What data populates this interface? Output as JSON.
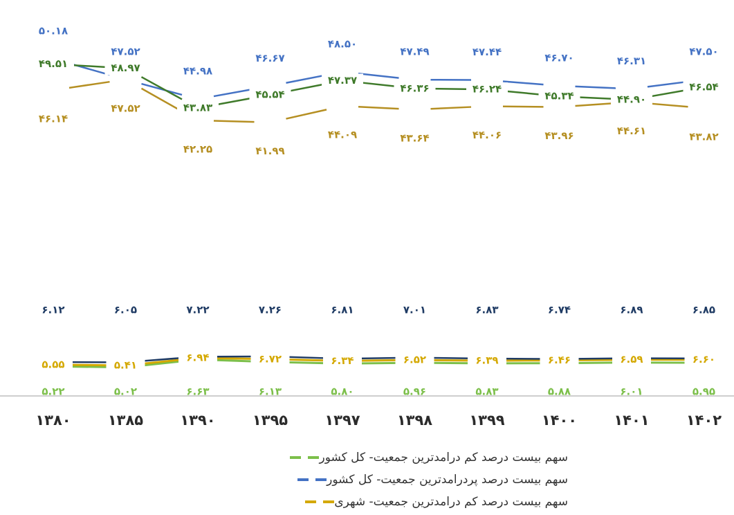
{
  "chart_data": {
    "type": "line",
    "categories": [
      "۱۳۸۰",
      "۱۳۸۵",
      "۱۳۹۰",
      "۱۳۹۵",
      "۱۳۹۷",
      "۱۳۹۸",
      "۱۳۹۹",
      "۱۴۰۰",
      "۱۴۰۱",
      "۱۴۰۲"
    ],
    "colors": {
      "blue": "#4472c4",
      "green": "#3f7a2a",
      "yellow": "#d4a800",
      "olive": "#b58f22",
      "darkblue": "#1f3b64",
      "lightgreen": "#7cbf4a",
      "axis": "#bdbdbd"
    },
    "top_group": {
      "series": [
        {
          "name": "سهم بیست درصد پردرامدترین جمعیت- کل کشور",
          "values": [
            50.18,
            47.52,
            44.98,
            46.67,
            48.5,
            47.49,
            47.44,
            46.7,
            46.31,
            47.5
          ],
          "labels": [
            "۵۰.۱۸",
            "۴۷.۵۲",
            "۴۴.۹۸",
            "۴۶.۶۷",
            "۴۸.۵۰",
            "۴۷.۴۹",
            "۴۷.۴۴",
            "۴۶.۷۰",
            "۴۶.۳۱",
            "۴۷.۵۰"
          ]
        },
        {
          "values": [
            49.51,
            48.97,
            43.83,
            45.54,
            47.37,
            46.36,
            46.24,
            45.34,
            44.9,
            46.54
          ],
          "labels": [
            "۴۹.۵۱",
            "۴۸.۹۷",
            "۴۳.۸۳",
            "۴۵.۵۴",
            "۴۷.۳۷",
            "۴۶.۳۶",
            "۴۶.۲۴",
            "۴۵.۳۴",
            "۴۴.۹۰",
            "۴۶.۵۴"
          ]
        },
        {
          "values": [
            46.14,
            47.52,
            42.25,
            41.99,
            44.09,
            43.64,
            44.06,
            43.96,
            44.61,
            43.82
          ],
          "labels": [
            "۴۶.۱۴",
            "۴۷.۵۲",
            "۴۲.۲۵",
            "۴۱.۹۹",
            "۴۴.۰۹",
            "۴۳.۶۴",
            "۴۴.۰۶",
            "۴۳.۹۶",
            "۴۴.۶۱",
            "۴۳.۸۲"
          ]
        }
      ]
    },
    "bottom_group": {
      "series": [
        {
          "values": [
            6.12,
            6.05,
            7.22,
            7.26,
            6.81,
            7.01,
            6.83,
            6.74,
            6.89,
            6.85
          ],
          "labels": [
            "۶.۱۲",
            "۶.۰۵",
            "۷.۲۲",
            "۷.۲۶",
            "۶.۸۱",
            "۷.۰۱",
            "۶.۸۳",
            "۶.۷۴",
            "۶.۸۹",
            "۶.۸۵"
          ]
        },
        {
          "name": "سهم بیست درصد کم درامدترین جمعیت- شهری",
          "values": [
            5.55,
            5.41,
            6.94,
            6.72,
            6.34,
            6.52,
            6.39,
            6.46,
            6.59,
            6.6
          ],
          "labels": [
            "۵.۵۵",
            "۵.۴۱",
            "۶.۹۴",
            "۶.۷۲",
            "۶.۳۴",
            "۶.۵۲",
            "۶.۳۹",
            "۶.۴۶",
            "۶.۵۹",
            "۶.۶۰"
          ]
        },
        {
          "name": "سهم بیست درصد کم درامدترین جمعیت- کل کشور",
          "values": [
            5.22,
            5.02,
            6.63,
            6.13,
            5.8,
            5.96,
            5.83,
            5.88,
            6.01,
            5.95
          ],
          "labels": [
            "۵.۲۲",
            "۵.۰۲",
            "۶.۶۳",
            "۶.۱۳",
            "۵.۸۰",
            "۵.۹۶",
            "۵.۸۳",
            "۵.۸۸",
            "۶.۰۱",
            "۵.۹۵"
          ]
        }
      ]
    },
    "legend": {
      "placement": "bottom-center",
      "entries": [
        {
          "text": "سهم بیست درصد کم درامدترین جمعیت- کل کشور",
          "color": "#7cbf4a"
        },
        {
          "text": "سهم بیست درصد پردرامدترین جمعیت- کل کشور",
          "color": "#4472c4"
        },
        {
          "text": "سهم بیست درصد کم درامدترین جمعیت- شهری",
          "color": "#d4a800"
        }
      ]
    }
  }
}
